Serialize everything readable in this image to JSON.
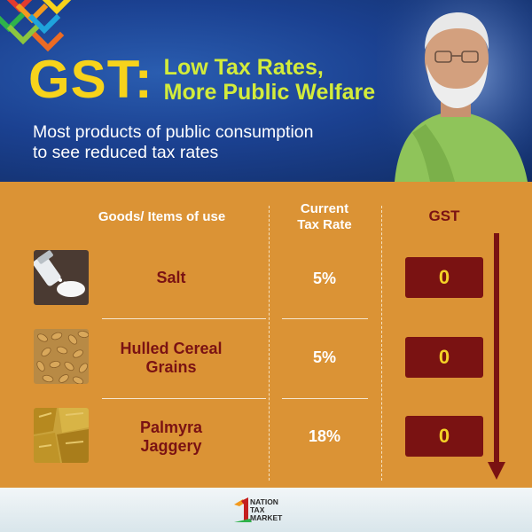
{
  "header": {
    "gst_word": "GST:",
    "title_line1": "Low Tax Rates,",
    "title_line2": "More Public Welfare",
    "subtitle_line1": "Most products of public consumption",
    "subtitle_line2": "to see reduced tax rates"
  },
  "table": {
    "columns": {
      "goods": "Goods/ Items of use",
      "current_line1": "Current",
      "current_line2": "Tax Rate",
      "gst": "GST"
    },
    "rows": [
      {
        "name_line1": "Salt",
        "name_line2": "",
        "thumb": "salt-icon",
        "current_rate": "5%",
        "gst_rate": "0"
      },
      {
        "name_line1": "Hulled Cereal",
        "name_line2": "Grains",
        "thumb": "cereal-grains-icon",
        "current_rate": "5%",
        "gst_rate": "0"
      },
      {
        "name_line1": "Palmyra",
        "name_line2": "Jaggery",
        "thumb": "jaggery-icon",
        "current_rate": "18%",
        "gst_rate": "0"
      }
    ]
  },
  "footer": {
    "logo_line1": "NATION",
    "logo_line2": "TAX",
    "logo_line3": "MARKET"
  },
  "colors": {
    "header_bg": "#1b4191",
    "gst_yellow": "#f7d31b",
    "title_green": "#d3ec3b",
    "board_orange": "#db9335",
    "maroon": "#7a1212"
  }
}
